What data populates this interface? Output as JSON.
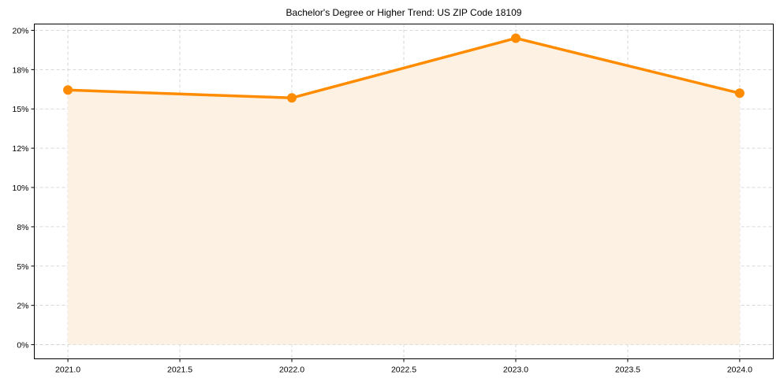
{
  "chart_data": {
    "type": "line",
    "title": "Bachelor's Degree or Higher Trend: US ZIP Code 18109",
    "xlabel": "",
    "ylabel": "",
    "x": [
      2021,
      2022,
      2023,
      2024
    ],
    "series": [
      {
        "name": "Bachelor's Degree or Higher",
        "values": [
          16.2,
          15.7,
          19.5,
          16.0
        ],
        "color": "#ff8c00",
        "fill_color": "#fdf1e4",
        "marker": "circle"
      }
    ],
    "xlim": [
      2020.85,
      2024.15
    ],
    "ylim": [
      -0.9,
      20.4
    ],
    "x_ticks": [
      2021.0,
      2021.5,
      2022.0,
      2022.5,
      2023.0,
      2023.5,
      2024.0
    ],
    "x_tick_labels": [
      "2021.0",
      "2021.5",
      "2022.0",
      "2022.5",
      "2023.0",
      "2023.5",
      "2024.0"
    ],
    "y_ticks": [
      0,
      2.5,
      5,
      7.5,
      10,
      12.5,
      15,
      17.5,
      20
    ],
    "y_tick_labels": [
      "0%",
      "2%",
      "5%",
      "8%",
      "10%",
      "12%",
      "15%",
      "18%",
      "20%"
    ],
    "grid": true,
    "legend": null,
    "area_fill": true
  }
}
